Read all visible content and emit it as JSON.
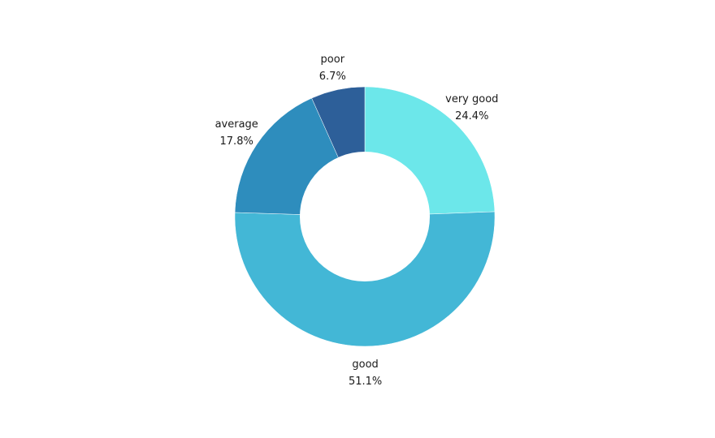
{
  "chart_data": {
    "type": "pie",
    "variant": "donut",
    "categories": [
      "very good",
      "good",
      "average",
      "poor"
    ],
    "values": [
      24.4,
      51.1,
      17.8,
      6.7
    ],
    "value_labels": [
      "24.4%",
      "51.1%",
      "17.8%",
      "6.7%"
    ],
    "colors": [
      "#6ce7ea",
      "#43b7d6",
      "#2e8dbd",
      "#2d5f99"
    ],
    "start_angle_deg": 0,
    "direction": "clockwise",
    "legend": "none",
    "labels_position": "outside"
  }
}
